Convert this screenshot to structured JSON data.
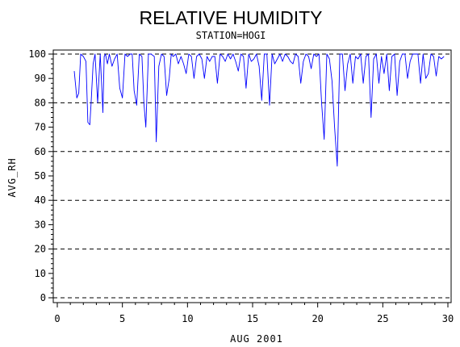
{
  "chart_data": {
    "type": "line",
    "title": "RELATIVE HUMIDITY",
    "subtitle": "STATION=HOGI",
    "xlabel": "AUG 2001",
    "ylabel": "AVG_RH",
    "xlim": [
      0,
      30
    ],
    "ylim": [
      0,
      100
    ],
    "x_ticks": [
      0,
      5,
      10,
      15,
      20,
      25,
      30
    ],
    "y_ticks": [
      0,
      10,
      20,
      30,
      40,
      50,
      60,
      70,
      80,
      90,
      100
    ],
    "reference_lines": [
      0,
      20,
      40,
      60,
      80,
      100
    ],
    "grid": false,
    "colors": {
      "series": "#0000ff",
      "axes": "#000000",
      "reference": "#000000"
    },
    "series": [
      {
        "x": [
          1.3,
          1.5,
          1.65,
          1.8,
          2.0,
          2.2,
          2.35,
          2.5,
          2.6,
          2.75,
          2.9,
          3.1,
          3.3,
          3.5,
          3.6,
          3.7,
          3.85,
          4.0,
          4.2,
          4.4,
          4.6,
          4.8,
          5.0,
          5.2,
          5.4,
          5.6,
          5.75,
          5.9,
          6.1,
          6.3,
          6.5,
          6.65,
          6.8,
          7.0,
          7.2,
          7.45,
          7.6,
          7.8,
          8.0,
          8.2,
          8.4,
          8.6,
          8.75,
          8.9,
          9.1,
          9.3,
          9.5,
          9.7,
          9.9,
          10.1,
          10.3,
          10.5,
          10.7,
          10.9,
          11.1,
          11.3,
          11.5,
          11.7,
          11.9,
          12.1,
          12.3,
          12.5,
          12.7,
          12.9,
          13.1,
          13.3,
          13.5,
          13.7,
          13.9,
          14.1,
          14.3,
          14.5,
          14.7,
          14.9,
          15.1,
          15.3,
          15.5,
          15.7,
          15.9,
          16.1,
          16.3,
          16.5,
          16.7,
          16.9,
          17.1,
          17.3,
          17.5,
          17.7,
          17.9,
          18.1,
          18.3,
          18.5,
          18.7,
          18.9,
          19.1,
          19.3,
          19.5,
          19.7,
          19.9,
          20.1,
          20.3,
          20.5,
          20.7,
          20.9,
          21.1,
          21.3,
          21.5,
          21.7,
          21.9,
          22.1,
          22.3,
          22.5,
          22.7,
          22.9,
          23.1,
          23.3,
          23.5,
          23.7,
          23.9,
          24.1,
          24.3,
          24.5,
          24.7,
          24.9,
          25.1,
          25.3,
          25.5,
          25.7,
          25.9,
          26.1,
          26.3,
          26.5,
          26.7,
          26.9,
          27.1,
          27.3,
          27.5,
          27.7,
          27.9,
          28.1,
          28.3,
          28.5,
          28.7,
          28.9,
          29.1,
          29.3,
          29.5,
          29.7
        ],
        "values": [
          93,
          82,
          84,
          100,
          99,
          97,
          72,
          71,
          80,
          96,
          100,
          80,
          100,
          76,
          99,
          100,
          96,
          100,
          95,
          98,
          100,
          86,
          82,
          100,
          99,
          100,
          100,
          85,
          79,
          100,
          99,
          80,
          70,
          100,
          100,
          99,
          64,
          95,
          100,
          99,
          83,
          90,
          100,
          99,
          100,
          96,
          99,
          96,
          92,
          100,
          99,
          90,
          99,
          100,
          98,
          90,
          99,
          97,
          99,
          99,
          88,
          100,
          99,
          97,
          100,
          98,
          100,
          97,
          93,
          100,
          99,
          86,
          100,
          97,
          98,
          100,
          95,
          81,
          100,
          100,
          79,
          100,
          96,
          98,
          100,
          97,
          100,
          99,
          97,
          96,
          100,
          99,
          88,
          97,
          100,
          99,
          94,
          100,
          99,
          100,
          80,
          65,
          100,
          98,
          89,
          70,
          54,
          100,
          100,
          85,
          96,
          100,
          88,
          99,
          98,
          100,
          88,
          99,
          100,
          74,
          98,
          100,
          88,
          99,
          92,
          100,
          85,
          99,
          100,
          83,
          97,
          100,
          100,
          90,
          97,
          100,
          100,
          100,
          88,
          100,
          90,
          92,
          100,
          99,
          91,
          99,
          98,
          99
        ]
      }
    ]
  }
}
